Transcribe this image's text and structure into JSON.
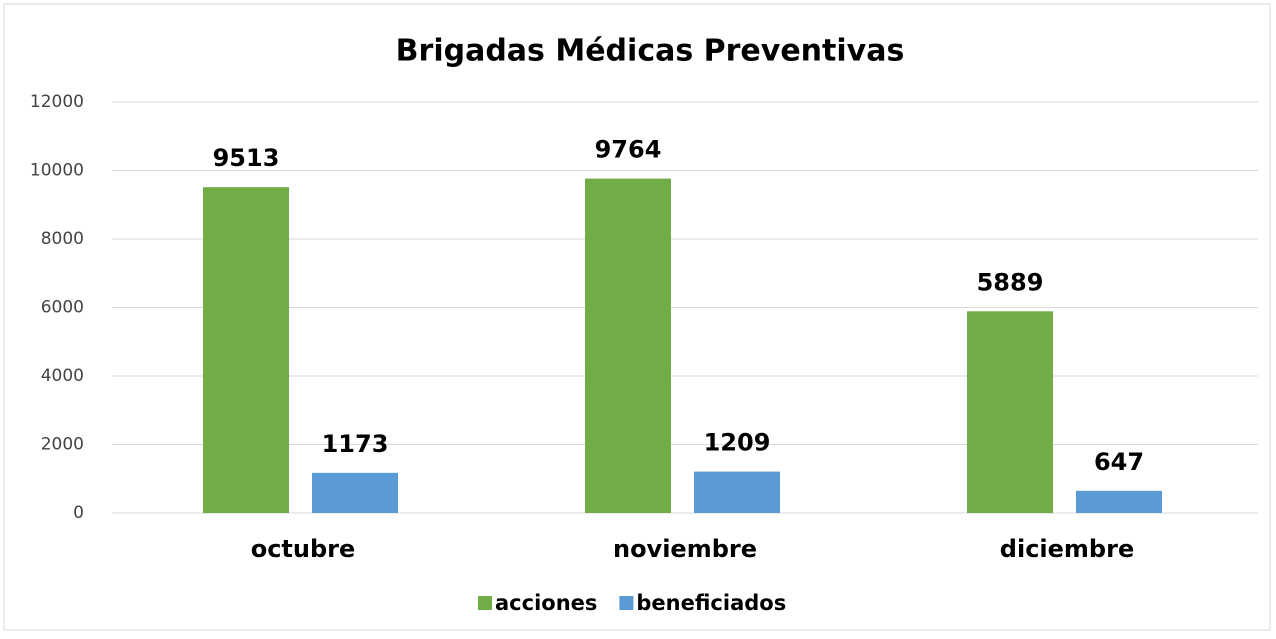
{
  "chart_data": {
    "type": "bar",
    "title": "Brigadas Médicas Preventivas",
    "categories": [
      "octubre",
      "noviembre",
      "diciembre"
    ],
    "series": [
      {
        "name": "acciones",
        "color": "#70ad47",
        "values": [
          9513,
          9764,
          5889
        ]
      },
      {
        "name": "beneficiados",
        "color": "#5b9bd5",
        "values": [
          1173,
          1209,
          647
        ]
      }
    ],
    "ylim": [
      0,
      12000
    ],
    "yticks": [
      0,
      2000,
      4000,
      6000,
      8000,
      10000,
      12000
    ],
    "grid": true,
    "legend": "bottom"
  }
}
